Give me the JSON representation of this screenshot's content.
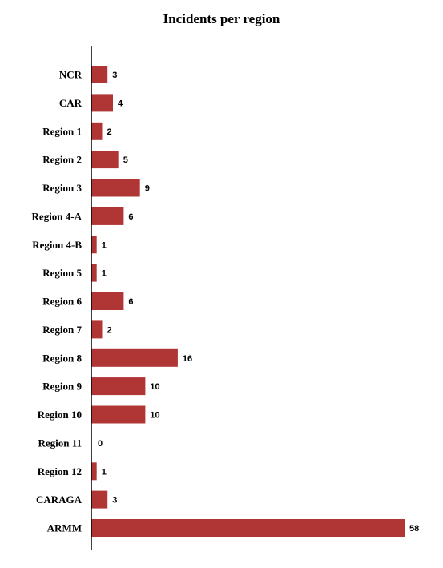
{
  "chart_data": {
    "type": "bar",
    "orientation": "horizontal",
    "title": "Incidents per region",
    "xlabel": "",
    "ylabel": "",
    "categories": [
      "NCR",
      "CAR",
      "Region 1",
      "Region 2",
      "Region 3",
      "Region 4-A",
      "Region 4-B",
      "Region 5",
      "Region 6",
      "Region 7",
      "Region 8",
      "Region 9",
      "Region 10",
      "Region 11",
      "Region 12",
      "CARAGA",
      "ARMM"
    ],
    "values": [
      3,
      4,
      2,
      5,
      9,
      6,
      1,
      1,
      6,
      2,
      16,
      10,
      10,
      0,
      1,
      3,
      58
    ],
    "xlim": [
      0,
      58
    ],
    "bar_color": "#b03535",
    "axis_color": "#000000",
    "grid": false,
    "legend": "none"
  }
}
